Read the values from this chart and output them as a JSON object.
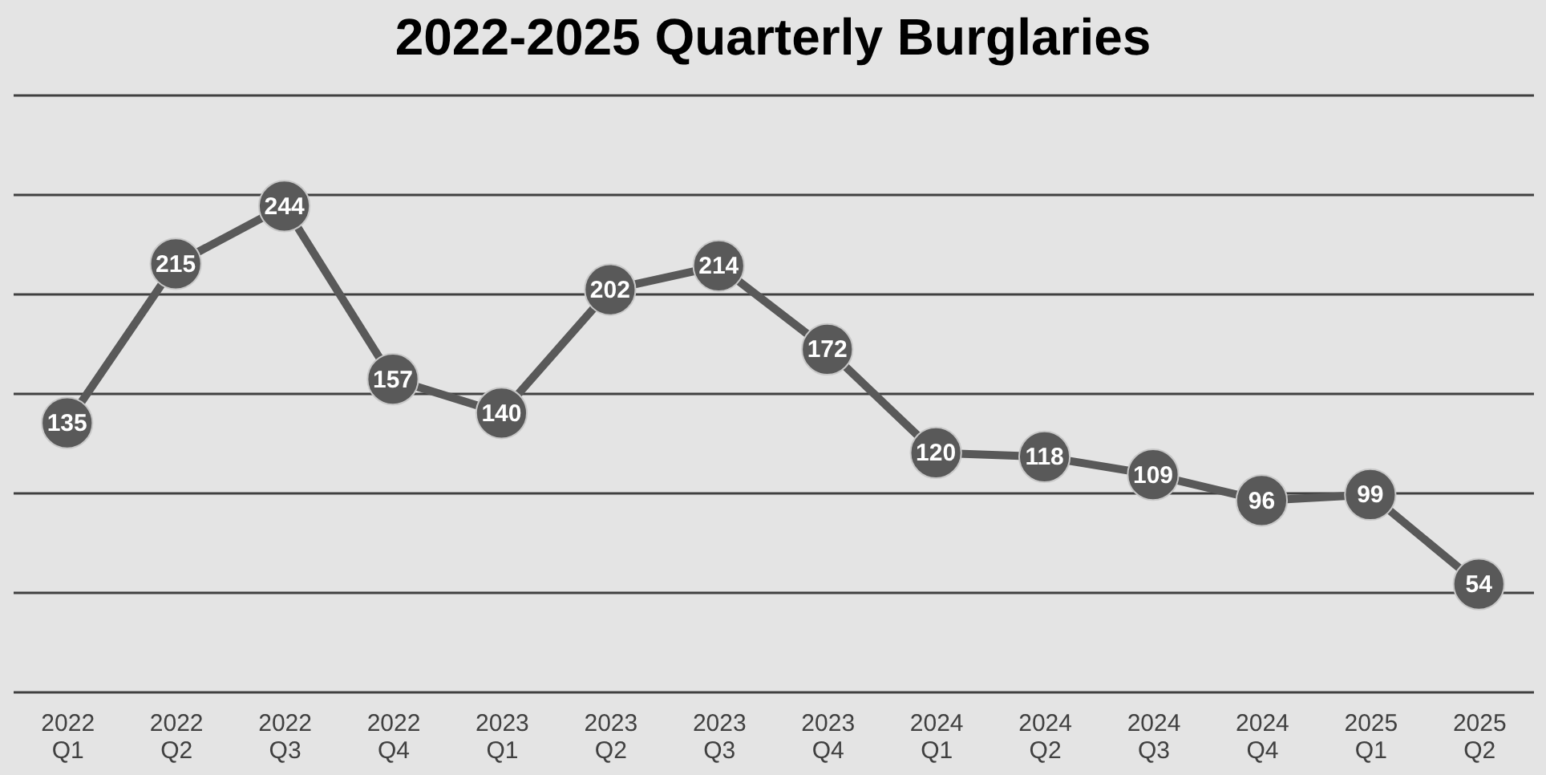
{
  "chart_data": {
    "type": "line",
    "title": "2022-2025  Quarterly Burglaries",
    "categories": [
      "2022\nQ1",
      "2022\nQ2",
      "2022\nQ3",
      "2022\nQ4",
      "2023\nQ1",
      "2023\nQ2",
      "2023\nQ3",
      "2023\nQ4",
      "2024\nQ1",
      "2024\nQ2",
      "2024\nQ3",
      "2024\nQ4",
      "2025\nQ1",
      "2025\nQ2"
    ],
    "series": [
      {
        "color": "#595959",
        "values": [
          135,
          215,
          244,
          157,
          140,
          202,
          214,
          172,
          120,
          118,
          109,
          96,
          99,
          54
        ]
      }
    ],
    "ylim": [
      0,
      300
    ],
    "yticks": [
      {
        "value": 0,
        "label": null
      },
      {
        "value": 50,
        "label": null
      },
      {
        "value": 100,
        "label": null
      },
      {
        "value": 150,
        "label": null
      },
      {
        "value": 200,
        "label": null
      },
      {
        "value": 250,
        "label": null
      },
      {
        "value": 300,
        "label": null
      }
    ],
    "tick_labels": "x",
    "grid": "y",
    "marker": "circle",
    "line_style": "solid",
    "data_labels": true
  }
}
